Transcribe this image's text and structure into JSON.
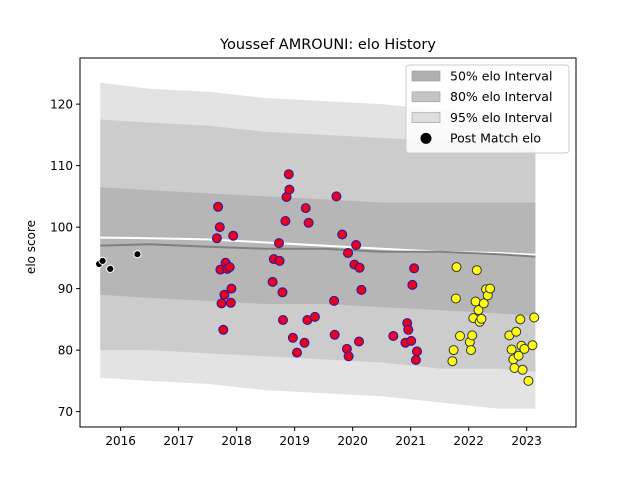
{
  "chart_data": {
    "type": "scatter",
    "title": "Youssef AMROUNI: elo History",
    "xlabel": "",
    "ylabel": "elo score",
    "xlim": [
      2015.3,
      2023.85
    ],
    "ylim": [
      67.5,
      127.5
    ],
    "x_ticks": [
      {
        "v": 2016,
        "label": "2016"
      },
      {
        "v": 2017,
        "label": "2017"
      },
      {
        "v": 2018,
        "label": "2018"
      },
      {
        "v": 2019,
        "label": "2019"
      },
      {
        "v": 2020,
        "label": "2020"
      },
      {
        "v": 2021,
        "label": "2021"
      },
      {
        "v": 2022,
        "label": "2022"
      },
      {
        "v": 2023,
        "label": "2023"
      }
    ],
    "y_ticks": [
      {
        "v": 70,
        "label": "70"
      },
      {
        "v": 80,
        "label": "80"
      },
      {
        "v": 90,
        "label": "90"
      },
      {
        "v": 100,
        "label": "100"
      },
      {
        "v": 110,
        "label": "110"
      },
      {
        "v": 120,
        "label": "120"
      }
    ],
    "grid": false,
    "legend_position": "top-right",
    "legend": [
      {
        "label": "50% elo Interval",
        "kind": "patch",
        "color": "#b0b0b0"
      },
      {
        "label": "80% elo Interval",
        "kind": "patch",
        "color": "#c4c4c4"
      },
      {
        "label": "95% elo Interval",
        "kind": "patch",
        "color": "#dedede"
      },
      {
        "label": "Post Match elo",
        "kind": "marker",
        "color": "#000000"
      }
    ],
    "bands": {
      "x": [
        2015.65,
        2016.5,
        2017.5,
        2018.5,
        2019.5,
        2020.5,
        2021.5,
        2022.5,
        2023.15
      ],
      "p95": {
        "lo": [
          75.5,
          75,
          74.5,
          73.5,
          73,
          72.5,
          71.5,
          70.5,
          70.5
        ],
        "hi": [
          123.5,
          122.5,
          122,
          121,
          120.5,
          120,
          119,
          118.5,
          118
        ],
        "color": "#dedede"
      },
      "p80": {
        "lo": [
          80,
          80,
          79.5,
          79,
          78.5,
          78,
          77,
          77,
          76.5
        ],
        "hi": [
          117.5,
          117,
          116.5,
          115.5,
          115,
          114.5,
          114,
          113.5,
          113
        ],
        "color": "#c8c8c8"
      },
      "p50": {
        "lo": [
          89,
          88.5,
          88,
          87.5,
          87.5,
          87,
          86.5,
          86,
          85.5
        ],
        "hi": [
          106.5,
          106,
          105.5,
          105,
          104.5,
          104,
          104,
          104,
          104
        ],
        "color": "#b2b2b2"
      }
    },
    "mean_line": {
      "x": [
        2015.65,
        2016.5,
        2017.5,
        2018.5,
        2019.5,
        2020.5,
        2021.5,
        2022.5,
        2023.15
      ],
      "y": [
        98.3,
        98.2,
        98,
        97.5,
        97,
        96.5,
        96,
        95.8,
        95.5
      ],
      "color": "#ffffff"
    },
    "median_line": {
      "x": [
        2015.65,
        2016.5,
        2017.5,
        2018.5,
        2019.5,
        2020.5,
        2021.5,
        2022.5,
        2023.15
      ],
      "y": [
        97,
        97.2,
        96.8,
        96.5,
        96.5,
        96,
        96,
        95.6,
        95.2
      ],
      "color": "#808080"
    },
    "series": [
      {
        "marker_fill": "#000000",
        "marker_edge": "#ffffff",
        "points": [
          [
            2015.63,
            94.0
          ],
          [
            2015.69,
            94.5
          ],
          [
            2015.82,
            93.2
          ],
          [
            2016.29,
            95.6
          ]
        ]
      },
      {
        "marker_fill": "#e8001c",
        "marker_edge": "#1c1ca8",
        "points": [
          [
            2017.66,
            98.2
          ],
          [
            2017.68,
            103.3
          ],
          [
            2017.71,
            100.0
          ],
          [
            2017.72,
            93.1
          ],
          [
            2017.74,
            87.6
          ],
          [
            2017.77,
            83.3
          ],
          [
            2017.79,
            89.0
          ],
          [
            2017.81,
            94.2
          ],
          [
            2017.84,
            93.2
          ],
          [
            2017.88,
            93.5
          ],
          [
            2017.9,
            87.7
          ],
          [
            2017.91,
            90.0
          ],
          [
            2017.94,
            98.6
          ],
          [
            2018.62,
            91.1
          ],
          [
            2018.64,
            94.8
          ],
          [
            2018.73,
            97.4
          ],
          [
            2018.74,
            94.5
          ],
          [
            2018.79,
            89.4
          ],
          [
            2018.8,
            84.9
          ],
          [
            2018.84,
            101.0
          ],
          [
            2018.86,
            104.9
          ],
          [
            2018.9,
            108.6
          ],
          [
            2018.91,
            106.1
          ],
          [
            2018.97,
            82.0
          ],
          [
            2019.04,
            79.6
          ],
          [
            2019.17,
            81.2
          ],
          [
            2019.19,
            103.1
          ],
          [
            2019.22,
            84.9
          ],
          [
            2019.24,
            100.7
          ],
          [
            2019.35,
            85.4
          ],
          [
            2019.68,
            88.0
          ],
          [
            2019.69,
            82.5
          ],
          [
            2019.72,
            105.0
          ],
          [
            2019.82,
            98.8
          ],
          [
            2019.9,
            80.2
          ],
          [
            2019.92,
            95.8
          ],
          [
            2019.93,
            79.0
          ],
          [
            2020.03,
            93.9
          ],
          [
            2020.06,
            97.1
          ],
          [
            2020.11,
            81.4
          ],
          [
            2020.12,
            93.4
          ],
          [
            2020.15,
            89.8
          ],
          [
            2020.7,
            82.3
          ],
          [
            2020.91,
            81.2
          ],
          [
            2020.94,
            84.4
          ],
          [
            2020.96,
            83.3
          ],
          [
            2021.01,
            81.5
          ],
          [
            2021.03,
            90.6
          ],
          [
            2021.06,
            93.3
          ],
          [
            2021.09,
            78.4
          ],
          [
            2021.11,
            79.8
          ]
        ]
      },
      {
        "marker_fill": "#ffff14",
        "marker_edge": "#333333",
        "points": [
          [
            2021.72,
            78.2
          ],
          [
            2021.74,
            80.0
          ],
          [
            2021.78,
            88.4
          ],
          [
            2021.79,
            93.5
          ],
          [
            2021.85,
            82.3
          ],
          [
            2022.02,
            81.3
          ],
          [
            2022.04,
            80.0
          ],
          [
            2022.06,
            82.4
          ],
          [
            2022.08,
            85.2
          ],
          [
            2022.12,
            87.9
          ],
          [
            2022.14,
            93.0
          ],
          [
            2022.17,
            86.5
          ],
          [
            2022.19,
            84.6
          ],
          [
            2022.22,
            85.1
          ],
          [
            2022.26,
            87.6
          ],
          [
            2022.3,
            89.9
          ],
          [
            2022.33,
            88.9
          ],
          [
            2022.37,
            90.0
          ],
          [
            2022.7,
            82.4
          ],
          [
            2022.74,
            80.1
          ],
          [
            2022.77,
            78.5
          ],
          [
            2022.79,
            77.1
          ],
          [
            2022.82,
            83.0
          ],
          [
            2022.86,
            79.1
          ],
          [
            2022.89,
            85.0
          ],
          [
            2022.91,
            80.7
          ],
          [
            2022.93,
            76.8
          ],
          [
            2022.96,
            80.2
          ],
          [
            2023.03,
            75.0
          ],
          [
            2023.1,
            80.8
          ],
          [
            2023.13,
            85.3
          ]
        ]
      }
    ]
  }
}
